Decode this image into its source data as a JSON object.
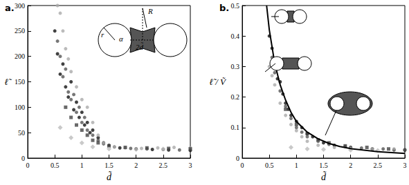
{
  "chart_data": [
    {
      "type": "scatter",
      "title": "a.",
      "xlabel": "d̃",
      "ylabel": "ℓ̃",
      "xlim": [
        0,
        3
      ],
      "xticks": [
        0,
        0.5,
        1,
        1.5,
        2,
        2.5,
        3
      ],
      "ylim": [
        0,
        300
      ],
      "yticks": [
        0,
        50,
        100,
        150,
        200,
        250,
        300
      ],
      "grid": false,
      "annotations": [
        "R",
        "r",
        "α",
        "2d̃"
      ],
      "series": [
        {
          "color": "#111111",
          "marker": "circle",
          "x": [
            0.5,
            0.55,
            0.6,
            0.65,
            0.7,
            0.75,
            0.8,
            0.85,
            0.9,
            0.95,
            1.0,
            1.05,
            1.1,
            1.15,
            1.2,
            1.3,
            1.4,
            1.5,
            1.7,
            2.0,
            2.3,
            2.6,
            3.0
          ],
          "values": [
            250,
            205,
            165,
            185,
            140,
            120,
            150,
            95,
            110,
            80,
            90,
            65,
            70,
            50,
            55,
            40,
            30,
            25,
            20,
            18,
            17,
            16,
            15
          ]
        },
        {
          "color": "#555555",
          "marker": "circle",
          "x": [
            0.55,
            0.6,
            0.65,
            0.7,
            0.75,
            0.8,
            0.85,
            0.9,
            0.95,
            1.0,
            1.05,
            1.1,
            1.2,
            1.3,
            1.4,
            1.6,
            1.9,
            2.2,
            2.5,
            2.8
          ],
          "values": [
            230,
            200,
            160,
            175,
            130,
            115,
            125,
            90,
            100,
            70,
            80,
            55,
            45,
            35,
            28,
            22,
            19,
            18,
            17,
            16
          ]
        },
        {
          "color": "#aaaaaa",
          "marker": "circle",
          "x": [
            0.55,
            0.6,
            0.65,
            0.7,
            0.75,
            0.8,
            0.9,
            1.0,
            1.1,
            1.2,
            1.3,
            1.4,
            1.6,
            1.8,
            2.1,
            2.4,
            2.7,
            3.0
          ],
          "values": [
            300,
            285,
            250,
            215,
            195,
            170,
            140,
            115,
            100,
            70,
            45,
            30,
            22,
            20,
            19,
            20,
            21,
            20
          ]
        },
        {
          "color": "#444444",
          "marker": "square",
          "x": [
            0.7,
            0.8,
            0.9,
            1.0,
            1.1,
            1.2,
            1.3,
            1.5,
            1.8,
            2.2,
            2.6,
            3.0
          ],
          "values": [
            100,
            80,
            65,
            55,
            45,
            35,
            30,
            24,
            21,
            20,
            19,
            18
          ]
        },
        {
          "color": "#bbbbbb",
          "marker": "diamond",
          "x": [
            0.6,
            0.8,
            1.0,
            1.2,
            1.5,
            2.0,
            2.5
          ],
          "values": [
            60,
            40,
            30,
            22,
            18,
            17,
            18
          ]
        }
      ]
    },
    {
      "type": "scatter",
      "title": "b.",
      "xlabel": "d̃",
      "ylabel": "ℓ̃ / Ṽ",
      "xlim": [
        0,
        3
      ],
      "xticks": [
        0,
        0.5,
        1,
        1.5,
        2,
        2.5,
        3
      ],
      "ylim": [
        0,
        0.5
      ],
      "yticks": [
        0,
        0.1,
        0.2,
        0.3,
        0.4,
        0.5
      ],
      "grid": false,
      "series": [
        {
          "type": "line",
          "color": "#000000",
          "marker": "none",
          "line_style": "solid",
          "x": [
            0.45,
            0.5,
            0.6,
            0.7,
            0.8,
            0.9,
            1.0,
            1.2,
            1.4,
            1.6,
            1.8,
            2.0,
            2.5,
            3.0
          ],
          "values": [
            0.5,
            0.42,
            0.31,
            0.24,
            0.19,
            0.15,
            0.12,
            0.085,
            0.063,
            0.048,
            0.038,
            0.031,
            0.021,
            0.015
          ]
        },
        {
          "color": "#111111",
          "marker": "circle",
          "x": [
            0.5,
            0.55,
            0.6,
            0.65,
            0.7,
            0.75,
            0.8,
            0.85,
            0.9,
            1.0,
            1.1,
            1.2,
            1.3,
            1.5,
            1.7,
            2.0,
            2.4,
            2.8,
            3.0
          ],
          "values": [
            0.4,
            0.36,
            0.3,
            0.26,
            0.25,
            0.21,
            0.18,
            0.16,
            0.14,
            0.12,
            0.1,
            0.08,
            0.07,
            0.05,
            0.042,
            0.035,
            0.03,
            0.027,
            0.026
          ]
        },
        {
          "color": "#555555",
          "marker": "circle",
          "x": [
            0.55,
            0.6,
            0.7,
            0.8,
            0.9,
            1.0,
            1.1,
            1.2,
            1.4,
            1.6,
            1.9,
            2.2,
            2.6,
            3.0
          ],
          "values": [
            0.33,
            0.28,
            0.22,
            0.17,
            0.13,
            0.1,
            0.085,
            0.07,
            0.055,
            0.045,
            0.038,
            0.033,
            0.03,
            0.028
          ]
        },
        {
          "color": "#aaaaaa",
          "marker": "circle",
          "x": [
            0.5,
            0.55,
            0.6,
            0.7,
            0.8,
            0.9,
            1.0,
            1.1,
            1.2,
            1.4,
            1.7,
            2.0,
            2.4,
            2.8
          ],
          "values": [
            0.3,
            0.27,
            0.24,
            0.18,
            0.14,
            0.11,
            0.09,
            0.07,
            0.055,
            0.042,
            0.035,
            0.032,
            0.03,
            0.03
          ]
        },
        {
          "color": "#444444",
          "marker": "square",
          "x": [
            0.8,
            1.0,
            1.2,
            1.4,
            1.6,
            1.9,
            2.3,
            2.7
          ],
          "values": [
            0.16,
            0.11,
            0.08,
            0.06,
            0.05,
            0.04,
            0.035,
            0.03
          ]
        },
        {
          "color": "#bbbbbb",
          "marker": "diamond",
          "x": [
            0.9,
            1.2,
            1.5,
            2.0,
            2.5
          ],
          "values": [
            0.035,
            0.03,
            0.028,
            0.026,
            0.025
          ]
        }
      ]
    }
  ]
}
